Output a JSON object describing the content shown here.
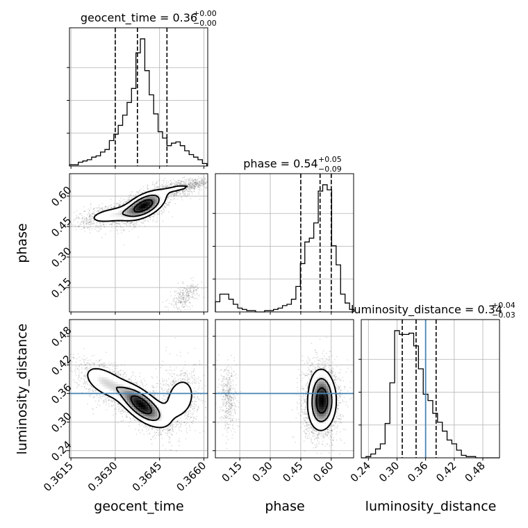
{
  "chart_data": {
    "type": "corner",
    "parameters": [
      "geocent_time",
      "phase",
      "luminosity_distance"
    ],
    "axis_labels": {
      "geocent_time": "geocent_time",
      "phase": "phase",
      "luminosity_distance": "luminosity_distance"
    },
    "ranges": {
      "geocent_time": [
        0.36145,
        0.36613
      ],
      "phase": [
        0.03,
        0.71
      ],
      "luminosity_distance": [
        0.225,
        0.515
      ]
    },
    "ticks": {
      "geocent_time": [
        "0.3615",
        "0.3630",
        "0.3645",
        "0.3660"
      ],
      "phase": [
        "0.15",
        "0.30",
        "0.45",
        "0.60"
      ],
      "luminosity_distance": [
        "0.24",
        "0.30",
        "0.36",
        "0.42",
        "0.48"
      ]
    },
    "titles": {
      "geocent_time": {
        "name": "geocent_time",
        "value": "0.36",
        "plus": "+0.00",
        "minus": "−0.00"
      },
      "phase": {
        "name": "phase",
        "value": "0.54",
        "plus": "+0.05",
        "minus": "−0.09"
      },
      "luminosity_distance": {
        "name": "luminosity_distance",
        "value": "0.34",
        "plus": "+0.04",
        "minus": "−0.03"
      }
    },
    "quantiles": {
      "geocent_time": [
        0.363,
        0.36375,
        0.36475
      ],
      "phase": [
        0.45,
        0.545,
        0.6
      ],
      "luminosity_distance": [
        0.311,
        0.34,
        0.382
      ]
    },
    "truths": {
      "luminosity_distance": 0.36
    },
    "truth_color": "#4682b4",
    "hist_color": "#000000",
    "grid": true,
    "histograms": {
      "geocent_time": {
        "bins": [
          0.36145,
          0.3616,
          0.36175,
          0.3619,
          0.36205,
          0.3622,
          0.36235,
          0.3625,
          0.36265,
          0.3628,
          0.36295,
          0.3631,
          0.36325,
          0.3634,
          0.36355,
          0.3637,
          0.36385,
          0.364,
          0.36415,
          0.3643,
          0.36445,
          0.3646,
          0.36475,
          0.3649,
          0.36505,
          0.3652,
          0.36535,
          0.3655,
          0.36565,
          0.3658,
          0.36595,
          0.3661
        ],
        "counts": [
          1,
          1,
          3,
          4,
          5,
          7,
          8,
          11,
          13,
          20,
          25,
          32,
          40,
          50,
          61,
          89,
          100,
          75,
          56,
          41,
          27,
          22,
          16,
          18,
          19,
          16,
          12,
          9,
          7,
          5,
          2
        ]
      },
      "phase": {
        "bins": [
          0.03,
          0.052,
          0.074,
          0.096,
          0.118,
          0.14,
          0.162,
          0.184,
          0.206,
          0.228,
          0.25,
          0.272,
          0.294,
          0.316,
          0.338,
          0.36,
          0.382,
          0.404,
          0.426,
          0.448,
          0.47,
          0.492,
          0.514,
          0.536,
          0.558,
          0.58,
          0.602,
          0.624,
          0.646,
          0.668,
          0.69,
          0.712
        ],
        "counts": [
          8,
          14,
          14,
          10,
          6,
          3,
          2,
          1,
          1,
          0,
          0,
          1,
          1,
          2,
          3,
          5,
          6,
          10,
          20,
          38,
          55,
          58,
          70,
          95,
          100,
          96,
          52,
          37,
          14,
          7,
          2
        ]
      },
      "luminosity_distance": {
        "bins": [
          0.225,
          0.235,
          0.245,
          0.255,
          0.265,
          0.275,
          0.285,
          0.295,
          0.305,
          0.315,
          0.325,
          0.335,
          0.345,
          0.355,
          0.365,
          0.375,
          0.385,
          0.395,
          0.405,
          0.415,
          0.425,
          0.435,
          0.445,
          0.455,
          0.465,
          0.475,
          0.485,
          0.495,
          0.505,
          0.515
        ],
        "counts": [
          0,
          1,
          3,
          7,
          11,
          27,
          59,
          100,
          97,
          97,
          98,
          88,
          70,
          50,
          45,
          35,
          28,
          21,
          14,
          11,
          6,
          2,
          1,
          1,
          0,
          0,
          0,
          0,
          0
        ]
      }
    },
    "pairs": [
      {
        "x": "geocent_time",
        "y": "phase",
        "blobs": [
          {
            "cx": 0.364,
            "cy": 0.555,
            "sx": 0.00045,
            "sy": 0.045,
            "rho": 0.55,
            "w": 1.0,
            "n": 1700
          },
          {
            "cx": 0.3628,
            "cy": 0.505,
            "sx": 0.00055,
            "sy": 0.03,
            "rho": 0.45,
            "w": 0.45,
            "n": 800
          },
          {
            "cx": 0.3652,
            "cy": 0.64,
            "sx": 0.0004,
            "sy": 0.02,
            "rho": 0.3,
            "w": 0.3,
            "n": 420
          },
          {
            "cx": 0.36575,
            "cy": 0.66,
            "sx": 0.0002,
            "sy": 0.012,
            "rho": 0.3,
            "w": 0.15,
            "n": 160
          },
          {
            "cx": 0.36535,
            "cy": 0.105,
            "sx": 0.00025,
            "sy": 0.035,
            "rho": 0.6,
            "w": 0.18,
            "n": 280
          }
        ]
      },
      {
        "x": "geocent_time",
        "y": "luminosity_distance",
        "blobs": [
          {
            "cx": 0.3639,
            "cy": 0.335,
            "sx": 0.0005,
            "sy": 0.028,
            "rho": -0.65,
            "w": 1.0,
            "n": 1700
          },
          {
            "cx": 0.3626,
            "cy": 0.385,
            "sx": 0.0005,
            "sy": 0.025,
            "rho": -0.5,
            "w": 0.5,
            "n": 800
          },
          {
            "cx": 0.3652,
            "cy": 0.35,
            "sx": 0.0004,
            "sy": 0.035,
            "rho": 0.2,
            "w": 0.45,
            "n": 750
          }
        ]
      },
      {
        "x": "phase",
        "y": "luminosity_distance",
        "blobs": [
          {
            "cx": 0.555,
            "cy": 0.335,
            "sx": 0.045,
            "sy": 0.035,
            "rho": 0.1,
            "w": 1.0,
            "n": 2000
          },
          {
            "cx": 0.545,
            "cy": 0.38,
            "sx": 0.04,
            "sy": 0.03,
            "rho": 0.0,
            "w": 0.4,
            "n": 600
          },
          {
            "cx": 0.095,
            "cy": 0.35,
            "sx": 0.02,
            "sy": 0.035,
            "rho": -0.1,
            "w": 0.22,
            "n": 420
          }
        ]
      }
    ]
  }
}
